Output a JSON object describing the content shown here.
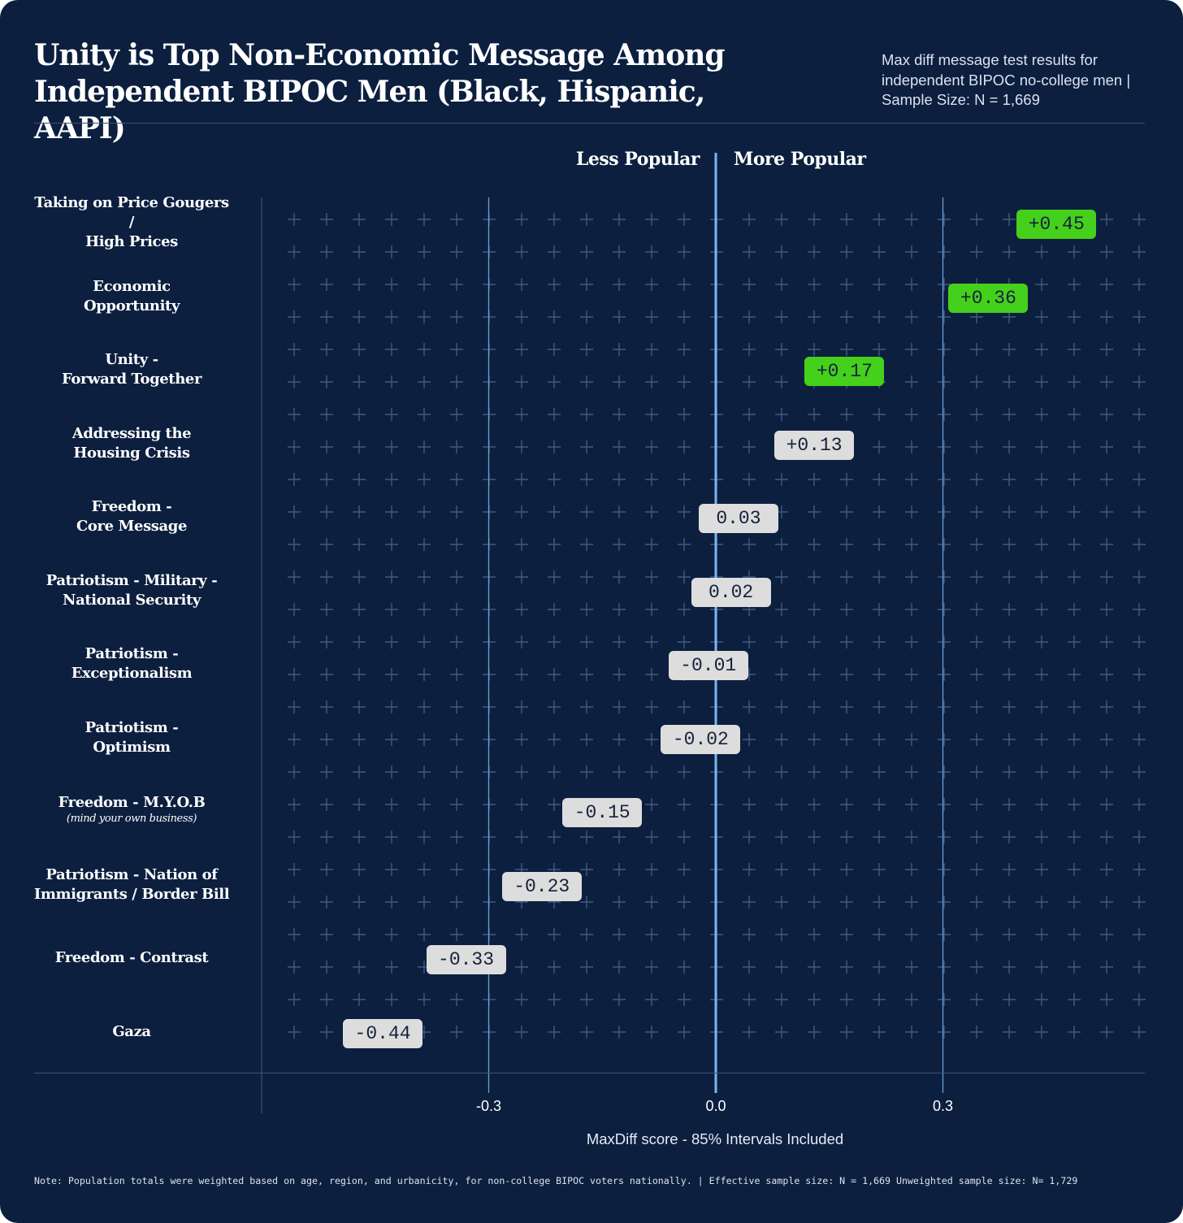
{
  "header": {
    "title": "Unity is Top Non-Economic Message Among Independent BIPOC Men (Black, Hispanic, AAPI)",
    "subtitle": "Max diff message test results for independent BIPOC no-college men | Sample Size: N = 1,669"
  },
  "footnote": "Note: Population totals were weighted based on age, region, and urbanicity, for non-college BIPOC voters nationally. | Effective sample size: N = 1,669 Unweighted sample size: N= 1,729",
  "colors": {
    "background": "#0c1f3f",
    "grid_plus": "#3f5a82",
    "zero_line": "#79b8f0",
    "positive_pill": "#45d01b",
    "neutral_pill": "#dddddd",
    "pill_text": "#14213a"
  },
  "chart_data": {
    "type": "bar",
    "title": "Unity is Top Non-Economic Message Among Independent BIPOC Men (Black, Hispanic, AAPI)",
    "xlabel": "MaxDiff score - 85% Intervals Included",
    "direction_labels": {
      "negative": "Less Popular",
      "positive": "More Popular"
    },
    "xlim": [
      -0.6,
      0.6
    ],
    "xticks": [
      -0.3,
      0.0,
      0.3
    ],
    "xtick_labels": [
      "-0.3",
      "0.0",
      "0.3"
    ],
    "categories": [
      {
        "label": "Taking on Price Gougers  /\nHigh Prices",
        "note": "",
        "value": 0.45,
        "display": "+0.45",
        "highlight": true
      },
      {
        "label": "Economic\nOpportunity",
        "note": "",
        "value": 0.36,
        "display": "+0.36",
        "highlight": true
      },
      {
        "label": "Unity -\nForward Together",
        "note": "",
        "value": 0.17,
        "display": "+0.17",
        "highlight": true
      },
      {
        "label": "Addressing the\nHousing Crisis",
        "note": "",
        "value": 0.13,
        "display": "+0.13",
        "highlight": false
      },
      {
        "label": "Freedom -\nCore Message",
        "note": "",
        "value": 0.03,
        "display": "0.03",
        "highlight": false
      },
      {
        "label": "Patriotism - Military  -\nNational Security",
        "note": "",
        "value": 0.02,
        "display": "0.02",
        "highlight": false
      },
      {
        "label": "Patriotism -\nExceptionalism",
        "note": "",
        "value": -0.01,
        "display": "-0.01",
        "highlight": false
      },
      {
        "label": "Patriotism -\nOptimism",
        "note": "",
        "value": -0.02,
        "display": "-0.02",
        "highlight": false
      },
      {
        "label": "Freedom - M.Y.O.B",
        "note": "(mind your own business)",
        "value": -0.15,
        "display": "-0.15",
        "highlight": false
      },
      {
        "label": "Patriotism - Nation of\nImmigrants / Border Bill",
        "note": "",
        "value": -0.23,
        "display": "-0.23",
        "highlight": false
      },
      {
        "label": "Freedom - Contrast",
        "note": "",
        "value": -0.33,
        "display": "-0.33",
        "highlight": false
      },
      {
        "label": "Gaza",
        "note": "",
        "value": -0.44,
        "display": "-0.44",
        "highlight": false
      }
    ]
  }
}
